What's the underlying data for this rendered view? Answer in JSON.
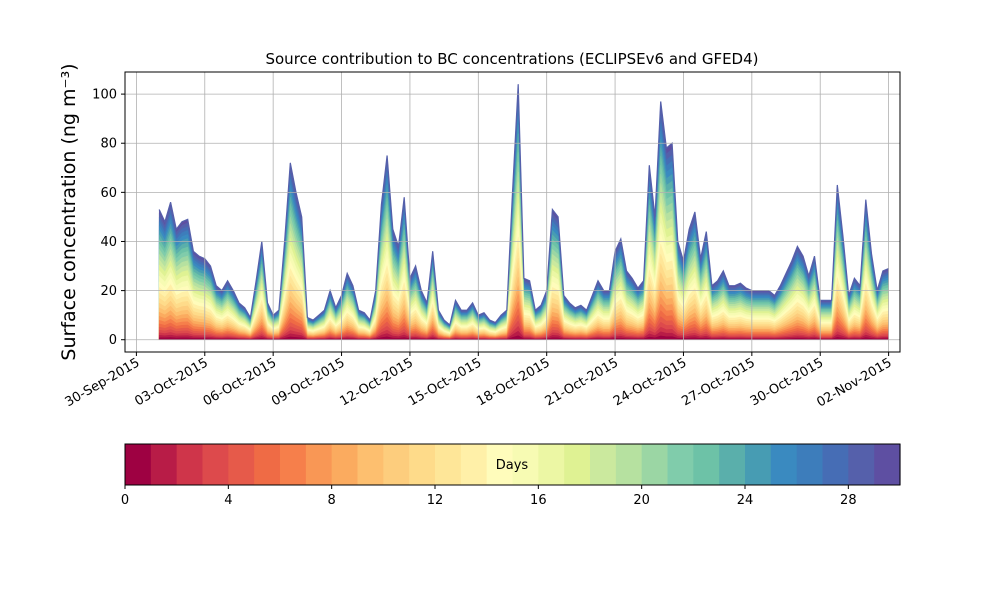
{
  "chart_data": {
    "type": "area",
    "stacked": true,
    "title": "Source contribution to BC concentrations (ECLIPSEv6 and GFED4)",
    "ylabel": "Surface concentration (ng m⁻³)",
    "xlabel": "",
    "ylim": [
      -5,
      109
    ],
    "xlim": [
      "2015-09-29T12:00",
      "2015-11-02T12:00"
    ],
    "grid": true,
    "yticks": [
      0,
      20,
      40,
      60,
      80,
      100
    ],
    "xticks": [
      "30-Sep-2015",
      "03-Oct-2015",
      "06-Oct-2015",
      "09-Oct-2015",
      "12-Oct-2015",
      "15-Oct-2015",
      "18-Oct-2015",
      "21-Oct-2015",
      "24-Oct-2015",
      "27-Oct-2015",
      "30-Oct-2015",
      "02-Nov-2015"
    ],
    "x": [
      "2015-10-01T00:00",
      "2015-10-01T06:00",
      "2015-10-01T12:00",
      "2015-10-01T18:00",
      "2015-10-02T00:00",
      "2015-10-02T06:00",
      "2015-10-02T12:00",
      "2015-10-02T18:00",
      "2015-10-03T00:00",
      "2015-10-03T06:00",
      "2015-10-03T12:00",
      "2015-10-03T18:00",
      "2015-10-04T00:00",
      "2015-10-04T06:00",
      "2015-10-04T12:00",
      "2015-10-04T18:00",
      "2015-10-05T00:00",
      "2015-10-05T06:00",
      "2015-10-05T12:00",
      "2015-10-05T18:00",
      "2015-10-06T00:00",
      "2015-10-06T06:00",
      "2015-10-06T12:00",
      "2015-10-06T18:00",
      "2015-10-07T00:00",
      "2015-10-07T06:00",
      "2015-10-07T12:00",
      "2015-10-07T18:00",
      "2015-10-08T00:00",
      "2015-10-08T06:00",
      "2015-10-08T12:00",
      "2015-10-08T18:00",
      "2015-10-09T00:00",
      "2015-10-09T06:00",
      "2015-10-09T12:00",
      "2015-10-09T18:00",
      "2015-10-10T00:00",
      "2015-10-10T06:00",
      "2015-10-10T12:00",
      "2015-10-10T18:00",
      "2015-10-11T00:00",
      "2015-10-11T06:00",
      "2015-10-11T12:00",
      "2015-10-11T18:00",
      "2015-10-12T00:00",
      "2015-10-12T06:00",
      "2015-10-12T12:00",
      "2015-10-12T18:00",
      "2015-10-13T00:00",
      "2015-10-13T06:00",
      "2015-10-13T12:00",
      "2015-10-13T18:00",
      "2015-10-14T00:00",
      "2015-10-14T06:00",
      "2015-10-14T12:00",
      "2015-10-14T18:00",
      "2015-10-15T00:00",
      "2015-10-15T06:00",
      "2015-10-15T12:00",
      "2015-10-15T18:00",
      "2015-10-16T00:00",
      "2015-10-16T06:00",
      "2015-10-16T12:00",
      "2015-10-16T18:00",
      "2015-10-17T00:00",
      "2015-10-17T06:00",
      "2015-10-17T12:00",
      "2015-10-17T18:00",
      "2015-10-18T00:00",
      "2015-10-18T06:00",
      "2015-10-18T12:00",
      "2015-10-18T18:00",
      "2015-10-19T00:00",
      "2015-10-19T06:00",
      "2015-10-19T12:00",
      "2015-10-19T18:00",
      "2015-10-20T00:00",
      "2015-10-20T06:00",
      "2015-10-20T12:00",
      "2015-10-20T18:00",
      "2015-10-21T00:00",
      "2015-10-21T06:00",
      "2015-10-21T12:00",
      "2015-10-21T18:00",
      "2015-10-22T00:00",
      "2015-10-22T06:00",
      "2015-10-22T12:00",
      "2015-10-22T18:00",
      "2015-10-23T00:00",
      "2015-10-23T06:00",
      "2015-10-23T12:00",
      "2015-10-23T18:00",
      "2015-10-24T00:00",
      "2015-10-24T06:00",
      "2015-10-24T12:00",
      "2015-10-24T18:00",
      "2015-10-25T00:00",
      "2015-10-25T06:00",
      "2015-10-25T12:00",
      "2015-10-25T18:00",
      "2015-10-26T00:00",
      "2015-10-26T06:00",
      "2015-10-26T12:00",
      "2015-10-26T18:00",
      "2015-10-27T00:00",
      "2015-10-27T06:00",
      "2015-10-27T12:00",
      "2015-10-27T18:00",
      "2015-10-28T00:00",
      "2015-10-28T06:00",
      "2015-10-28T12:00",
      "2015-10-28T18:00",
      "2015-10-29T00:00",
      "2015-10-29T06:00",
      "2015-10-29T12:00",
      "2015-10-29T18:00",
      "2015-10-30T00:00",
      "2015-10-30T06:00",
      "2015-10-30T12:00",
      "2015-10-30T18:00",
      "2015-10-31T00:00",
      "2015-10-31T06:00",
      "2015-10-31T12:00",
      "2015-10-31T18:00",
      "2015-11-01T00:00",
      "2015-11-01T06:00",
      "2015-11-01T12:00",
      "2015-11-01T18:00",
      "2015-11-02T00:00"
    ],
    "total": [
      53,
      48,
      56,
      45,
      48,
      49,
      36,
      34,
      33,
      30,
      22,
      20,
      24,
      20,
      15,
      13,
      9,
      24,
      40,
      15,
      10,
      12,
      40,
      72,
      60,
      50,
      9,
      8,
      10,
      12,
      20,
      13,
      18,
      27,
      22,
      12,
      11,
      8,
      20,
      55,
      75,
      45,
      38,
      58,
      25,
      30,
      20,
      15,
      36,
      12,
      8,
      6,
      16,
      12,
      12,
      15,
      10,
      11,
      8,
      7,
      10,
      12,
      60,
      104,
      25,
      24,
      12,
      14,
      20,
      53,
      50,
      18,
      15,
      13,
      14,
      12,
      18,
      24,
      20,
      20,
      36,
      41,
      28,
      25,
      21,
      24,
      71,
      50,
      97,
      78,
      80,
      40,
      32,
      45,
      52,
      33,
      44,
      22,
      24,
      28,
      22,
      22,
      23,
      21,
      20,
      20,
      20,
      20,
      18,
      22,
      27,
      32,
      38,
      34,
      26,
      34,
      16,
      16,
      16,
      63,
      42,
      18,
      25,
      22,
      57,
      35,
      20,
      28,
      29
    ],
    "stack_share_by_layer": [
      0.015,
      0.017,
      0.018,
      0.02,
      0.022,
      0.024,
      0.026,
      0.028,
      0.03,
      0.032,
      0.034,
      0.036,
      0.038,
      0.04,
      0.041,
      0.042,
      0.041,
      0.04,
      0.039,
      0.038,
      0.037,
      0.036,
      0.035,
      0.034,
      0.033,
      0.032,
      0.031,
      0.03,
      0.029,
      0.028
    ],
    "colorbar": {
      "label": "Days",
      "min": 0,
      "max": 30,
      "levels": 30,
      "ticks": [
        "0",
        "4",
        "8",
        "12",
        "16",
        "20",
        "24",
        "28"
      ],
      "colors": [
        "#9e0142",
        "#b81c47",
        "#cf354a",
        "#dd4a4c",
        "#e65a4a",
        "#ef6b45",
        "#f67f4b",
        "#f99755",
        "#fbab5f",
        "#fdbf6f",
        "#fdcd7d",
        "#fedb8a",
        "#fee698",
        "#fff0a8",
        "#fffcbb",
        "#f7fbb3",
        "#ecf7a4",
        "#dff293",
        "#cbe99e",
        "#b6e1a0",
        "#9bd6a4",
        "#80ccab",
        "#6dc2a7",
        "#5aafab",
        "#479cb3",
        "#3a8ac0",
        "#3d7dbb",
        "#466db5",
        "#5560ab",
        "#5e4fa2"
      ]
    }
  }
}
